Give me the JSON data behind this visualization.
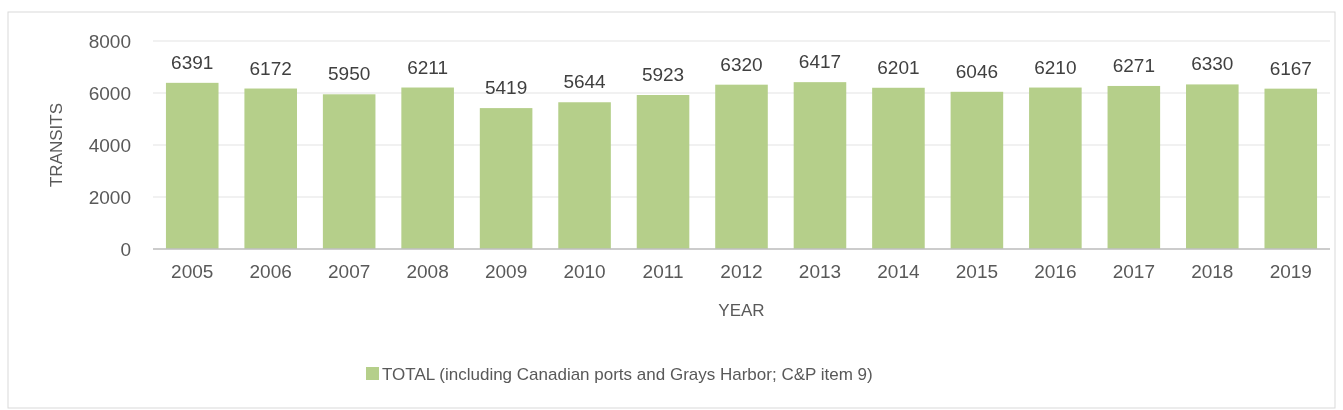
{
  "chart_data": {
    "type": "bar",
    "xlabel": "YEAR",
    "ylabel": "TRANSITS",
    "categories": [
      "2005",
      "2006",
      "2007",
      "2008",
      "2009",
      "2010",
      "2011",
      "2012",
      "2013",
      "2014",
      "2015",
      "2016",
      "2017",
      "2018",
      "2019"
    ],
    "series": [
      {
        "name": "TOTAL (including Canadian ports and Grays Harbor; C&P item 9)",
        "color": "#b5cf8a",
        "values": [
          6391,
          6172,
          5950,
          6211,
          5419,
          5644,
          5923,
          6320,
          6417,
          6201,
          6046,
          6210,
          6271,
          6330,
          6167
        ]
      }
    ],
    "ylim": [
      0,
      8000
    ],
    "yticks": [
      0,
      2000,
      4000,
      6000,
      8000
    ],
    "grid": "y",
    "legend": "bottom",
    "data_labels": true
  }
}
